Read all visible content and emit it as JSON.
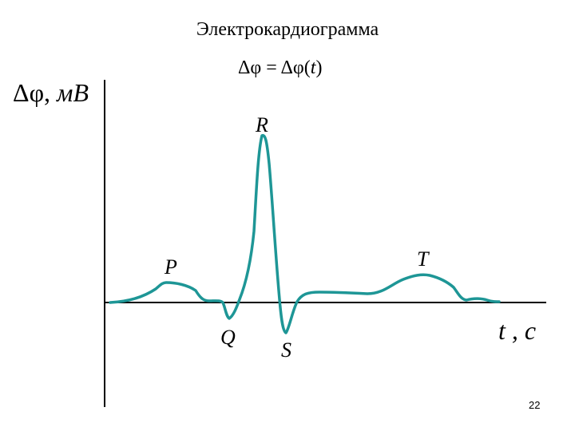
{
  "slide": {
    "title": "Электрокардиограмма",
    "formula": {
      "lhs": "Δφ = Δφ(",
      "var": "t",
      "rhs": ")"
    },
    "y_axis_label": {
      "symbol": "Δφ, ",
      "unit": "мВ"
    },
    "x_axis_label": "t , c",
    "waves": {
      "p": "P",
      "q": "Q",
      "r": "R",
      "s": "S",
      "t": "T"
    },
    "page_number": "22",
    "colors": {
      "curve": "#1e9696",
      "axes": "#000000"
    }
  }
}
